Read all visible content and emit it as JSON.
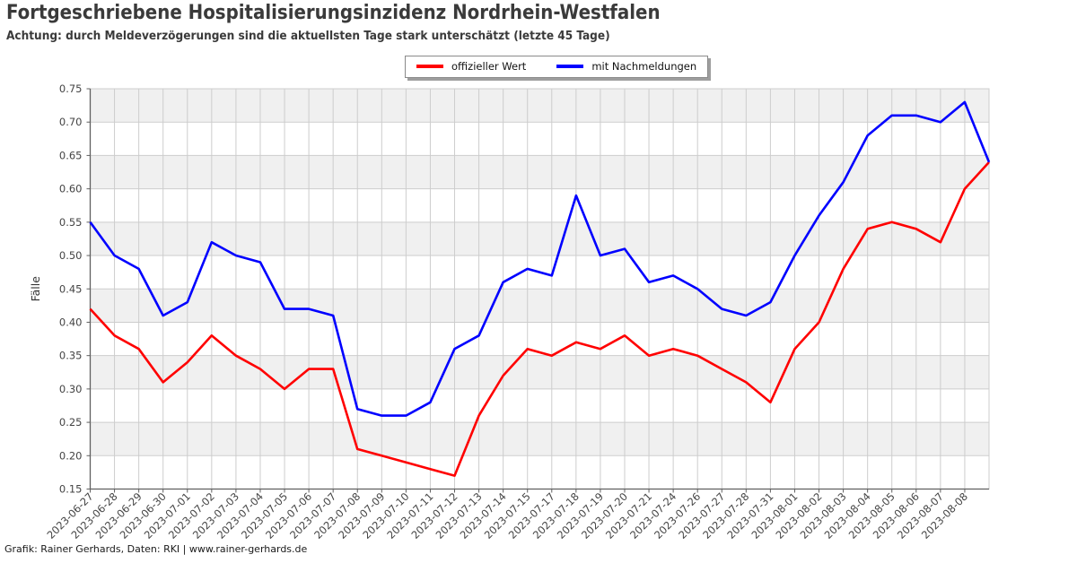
{
  "header": {
    "title": "Fortgeschriebene Hospitalisierungsinzidenz Nordrhein-Westfalen",
    "subtitle": "Achtung: durch Meldeverzögerungen sind die aktuellsten Tage stark unterschätzt (letzte 45 Tage)"
  },
  "footer": {
    "credit": "Grafik: Rainer Gerhards, Daten: RKI | www.rainer-gerhards.de"
  },
  "chart_data": {
    "type": "line",
    "title": "Fortgeschriebene Hospitalisierungsinzidenz Nordrhein-Westfalen",
    "subtitle": "Achtung: durch Meldeverzögerungen sind die aktuellsten Tage stark unterschätzt (letzte 45 Tage)",
    "xlabel": "",
    "ylabel": "Fälle",
    "ylim": [
      0.15,
      0.75
    ],
    "ytick_step": 0.05,
    "grid": true,
    "background_bands": true,
    "legend_position": "top-center",
    "note": "last data point is unlabeled on the x-axis; both series converge there",
    "categories": [
      "2023-06-27",
      "2023-06-28",
      "2023-06-29",
      "2023-06-30",
      "2023-07-01",
      "2023-07-02",
      "2023-07-03",
      "2023-07-04",
      "2023-07-05",
      "2023-07-06",
      "2023-07-07",
      "2023-07-08",
      "2023-07-09",
      "2023-07-10",
      "2023-07-11",
      "2023-07-12",
      "2023-07-13",
      "2023-07-14",
      "2023-07-15",
      "2023-07-17",
      "2023-07-18",
      "2023-07-19",
      "2023-07-20",
      "2023-07-21",
      "2023-07-24",
      "2023-07-26",
      "2023-07-27",
      "2023-07-28",
      "2023-07-31",
      "2023-08-01",
      "2023-08-02",
      "2023-08-03",
      "2023-08-04",
      "2023-08-05",
      "2023-08-06",
      "2023-08-07",
      "2023-08-08",
      ""
    ],
    "series": [
      {
        "name": "offizieller Wert",
        "color": "#ff0000",
        "values": [
          0.42,
          0.38,
          0.36,
          0.31,
          0.34,
          0.38,
          0.35,
          0.33,
          0.3,
          0.33,
          0.33,
          0.21,
          0.2,
          0.19,
          0.18,
          0.17,
          0.26,
          0.32,
          0.36,
          0.35,
          0.37,
          0.36,
          0.38,
          0.35,
          0.36,
          0.35,
          0.33,
          0.31,
          0.28,
          0.36,
          0.4,
          0.48,
          0.54,
          0.55,
          0.54,
          0.52,
          0.6,
          0.64
        ]
      },
      {
        "name": "mit Nachmeldungen",
        "color": "#0000ff",
        "values": [
          0.55,
          0.5,
          0.48,
          0.41,
          0.43,
          0.52,
          0.5,
          0.49,
          0.42,
          0.42,
          0.41,
          0.27,
          0.26,
          0.26,
          0.28,
          0.36,
          0.38,
          0.46,
          0.48,
          0.47,
          0.59,
          0.5,
          0.51,
          0.46,
          0.47,
          0.45,
          0.42,
          0.41,
          0.43,
          0.5,
          0.56,
          0.61,
          0.68,
          0.71,
          0.71,
          0.7,
          0.73,
          0.64
        ]
      }
    ]
  }
}
